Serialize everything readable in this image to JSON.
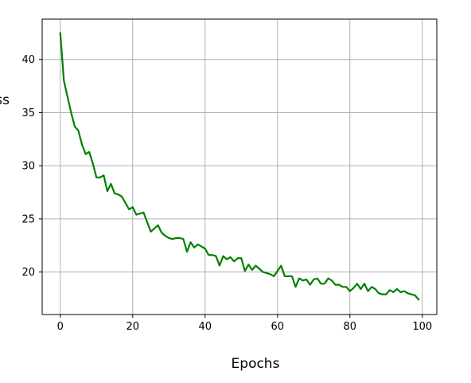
{
  "chart_data": {
    "type": "line",
    "title": "",
    "xlabel": "Epochs",
    "ylabel": "Loss",
    "xlim": [
      -5,
      104
    ],
    "ylim": [
      16.0,
      43.8
    ],
    "grid": true,
    "x_ticks": [
      0,
      20,
      40,
      60,
      80,
      100
    ],
    "x_tick_labels": [
      "0",
      "20",
      "40",
      "60",
      "80",
      "100"
    ],
    "y_ticks": [
      20,
      25,
      30,
      35,
      40
    ],
    "y_tick_labels": [
      "20",
      "25",
      "30",
      "35",
      "40"
    ],
    "series": [
      {
        "color": "#008000",
        "x": [
          0,
          1,
          2,
          3,
          4,
          5,
          6,
          7,
          8,
          9,
          10,
          11,
          12,
          13,
          14,
          15,
          16,
          17,
          18,
          19,
          20,
          21,
          22,
          23,
          24,
          25,
          26,
          27,
          28,
          29,
          30,
          31,
          32,
          33,
          34,
          35,
          36,
          37,
          38,
          39,
          40,
          41,
          42,
          43,
          44,
          45,
          46,
          47,
          48,
          49,
          50,
          51,
          52,
          53,
          54,
          55,
          56,
          57,
          58,
          59,
          60,
          61,
          62,
          63,
          64,
          65,
          66,
          67,
          68,
          69,
          70,
          71,
          72,
          73,
          74,
          75,
          76,
          77,
          78,
          79,
          80,
          81,
          82,
          83,
          84,
          85,
          86,
          87,
          88,
          89,
          90,
          91,
          92,
          93,
          94,
          95,
          96,
          97,
          98,
          99
        ],
        "values": [
          42.5,
          38.0,
          36.5,
          35.0,
          33.7,
          33.3,
          32.0,
          31.1,
          31.3,
          30.2,
          28.9,
          28.9,
          29.1,
          27.6,
          28.3,
          27.4,
          27.3,
          27.1,
          26.5,
          25.9,
          26.1,
          25.4,
          25.5,
          25.6,
          24.7,
          23.8,
          24.1,
          24.4,
          23.7,
          23.4,
          23.2,
          23.1,
          23.2,
          23.2,
          23.1,
          21.9,
          22.8,
          22.3,
          22.6,
          22.4,
          22.2,
          21.6,
          21.6,
          21.5,
          20.6,
          21.5,
          21.2,
          21.4,
          21.0,
          21.3,
          21.3,
          20.1,
          20.7,
          20.2,
          20.6,
          20.3,
          20.0,
          19.9,
          19.8,
          19.6,
          20.1,
          20.6,
          19.6,
          19.6,
          19.6,
          18.6,
          19.4,
          19.2,
          19.3,
          18.8,
          19.3,
          19.4,
          18.9,
          18.9,
          19.4,
          19.2,
          18.8,
          18.8,
          18.6,
          18.6,
          18.2,
          18.5,
          18.9,
          18.4,
          18.9,
          18.2,
          18.6,
          18.4,
          18.0,
          17.9,
          17.9,
          18.3,
          18.1,
          18.4,
          18.1,
          18.2,
          18.0,
          17.9,
          17.8,
          17.4
        ]
      }
    ]
  }
}
